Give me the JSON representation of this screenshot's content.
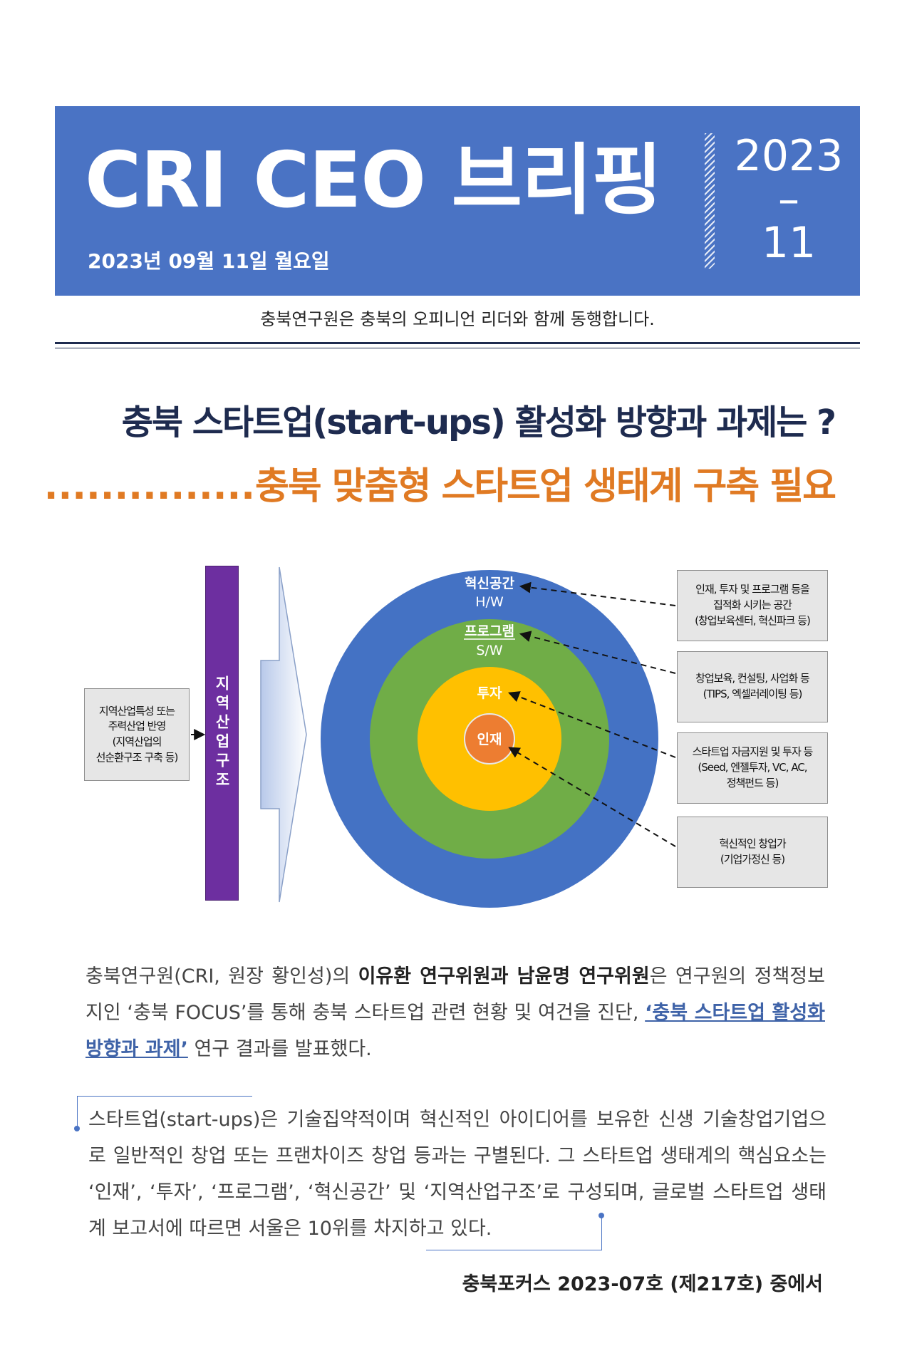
{
  "header": {
    "title": "CRI CEO 브리핑",
    "date": "2023년 09월 11일 월요일",
    "issue": "2023\n–\n11",
    "tagline": "충북연구원은  충북의 오피니언 리더와 함께 동행합니다."
  },
  "headline": {
    "main": "충북 스타트업(start-ups) 활성화  방향과 과제는 ?",
    "sub_dots": "...............",
    "sub": "충북 맞춤형 스타트업 생태계 구축 필요"
  },
  "diagram": {
    "left_box": "지역산업특성 또는\n주력산업 반영\n(지역산업의\n선순환구조 구축 등)",
    "bar_label": "지역산업구조",
    "circles": {
      "outer_title": "혁신공간",
      "outer_sub": "H/W",
      "middle_title": "프로그램",
      "middle_sub": "S/W",
      "inner": "투자",
      "core": "인재"
    },
    "right_boxes": [
      "인재, 투자 및 프로그램 등을\n집적화 시키는 공간\n(창업보육센터, 혁신파크 등)",
      "창업보육, 컨설팅, 사업화 등\n(TIPS, 엑셀러레이팅 등)",
      "스타트업 자금지원 및 투자 등\n(Seed, 엔젤투자, VC, AC,\n정책펀드 등)",
      "혁신적인 창업가\n(기업가정신 등)"
    ],
    "colors": {
      "outer": "#4472c4",
      "middle": "#70ad47",
      "inner": "#ffc000",
      "core": "#ed7d31",
      "bar": "#7030a0"
    }
  },
  "body": {
    "p1_a": "충북연구원(CRI, 원장 황인성)의 ",
    "p1_b": "이유환 연구위원과 남윤명 연구위원",
    "p1_c": "은 연구원의 정책정보지인 ‘충북 FOCUS’를 통해 충북 스타트업 관련 현황 및 여건을 진단, ",
    "p1_link": "‘충북 스타트업 활성화 방향과 과제’",
    "p1_d": " 연구 결과를 발표했다.",
    "p2": "스타트업(start-ups)은 기술집약적이며 혁신적인 아이디어를 보유한 신생 기술창업기업으로 일반적인 창업 또는 프랜차이즈 창업 등과는 구별된다. 그 스타트업 생태계의 핵심요소는 ‘인재’, ‘투자’, ‘프로그램’, ‘혁신공간’ 및 ‘지역산업구조’로 구성되며, 글로벌 스타트업 생태계 보고서에 따르면 서울은 10위를 차지하고 있다.",
    "source": "충북포커스 2023-07호   (제217호) 중에서"
  }
}
